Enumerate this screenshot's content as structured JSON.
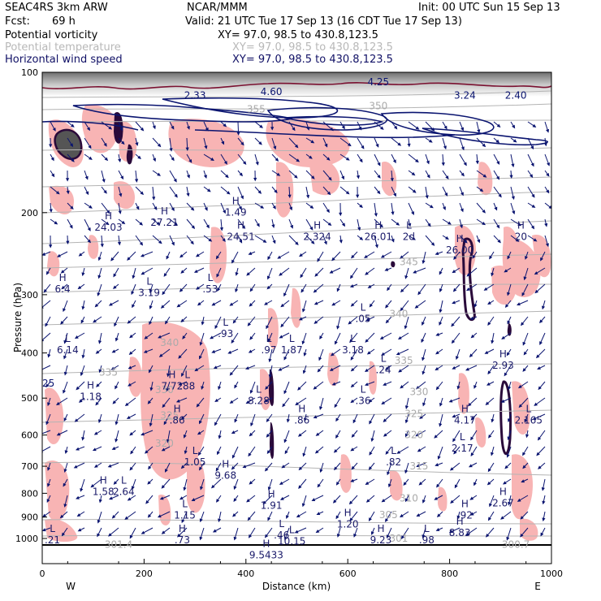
{
  "header": {
    "model": "SEAC4RS  3km ARW",
    "org": "NCAR/MMM",
    "init": "Init: 00 UTC Sun 15 Sep 13",
    "fcst_label": "Fcst:",
    "fcst_value": "69 h",
    "valid": "Valid: 21 UTC Tue 17 Sep 13 (16 CDT Tue 17 Sep 13)"
  },
  "legend": [
    {
      "name": "Potential vorticity",
      "xy": "XY=  97.0, 98.5 to 430.8,123.5",
      "color": "#000000"
    },
    {
      "name": "Potential temperature",
      "xy": "XY=  97.0, 98.5 to 430.8,123.5",
      "color": "#b8b8b8"
    },
    {
      "name": "Horizontal wind speed",
      "xy": "XY=  97.0, 98.5 to 430.8,123.5",
      "color": "#000066"
    }
  ],
  "chart_data": {
    "type": "cross-section",
    "xlabel": "Distance (km)",
    "ylabel": "Pressure (hPa)",
    "xlim": [
      0,
      1000
    ],
    "ylim": [
      1000,
      100
    ],
    "y_scale": "log",
    "x_ticks": [
      "0",
      "200",
      "400",
      "600",
      "800",
      "1000"
    ],
    "y_ticks": [
      "100",
      "200",
      "300",
      "400",
      "500",
      "600",
      "700",
      "800",
      "900",
      "1000"
    ],
    "x_end_labels": [
      "W",
      "E"
    ],
    "theta_labels": [
      {
        "text": "355",
        "x": 420,
        "p": 120
      },
      {
        "text": "350",
        "x": 660,
        "p": 118
      },
      {
        "text": "345",
        "x": 720,
        "p": 255
      },
      {
        "text": "340",
        "x": 700,
        "p": 330
      },
      {
        "text": "340",
        "x": 250,
        "p": 380
      },
      {
        "text": "335",
        "x": 130,
        "p": 440
      },
      {
        "text": "335",
        "x": 710,
        "p": 415
      },
      {
        "text": "330",
        "x": 240,
        "p": 480
      },
      {
        "text": "330",
        "x": 740,
        "p": 485
      },
      {
        "text": "325",
        "x": 250,
        "p": 545
      },
      {
        "text": "325",
        "x": 730,
        "p": 540
      },
      {
        "text": "320",
        "x": 240,
        "p": 625
      },
      {
        "text": "320",
        "x": 730,
        "p": 600
      },
      {
        "text": "315",
        "x": 740,
        "p": 700
      },
      {
        "text": "310",
        "x": 720,
        "p": 820
      },
      {
        "text": "305",
        "x": 680,
        "p": 890
      },
      {
        "text": "301.4",
        "x": 150,
        "p": 1030
      },
      {
        "text": "301",
        "x": 700,
        "p": 1000
      },
      {
        "text": "300.7",
        "x": 930,
        "p": 1030
      }
    ],
    "extrema": [
      {
        "hl": "H",
        "val": "24.03",
        "x": 130,
        "p": 210
      },
      {
        "hl": "H",
        "val": "27.21",
        "x": 240,
        "p": 205
      },
      {
        "hl": "H",
        "val": "1.49",
        "x": 380,
        "p": 195
      },
      {
        "hl": "H",
        "val": "24.51",
        "x": 390,
        "p": 220
      },
      {
        "hl": "H",
        "val": "2.324",
        "x": 540,
        "p": 220
      },
      {
        "hl": "H",
        "val": "26.01",
        "x": 660,
        "p": 220
      },
      {
        "hl": "L",
        "val": "2d",
        "x": 720,
        "p": 220
      },
      {
        "hl": "H",
        "val": "26.00",
        "x": 820,
        "p": 235
      },
      {
        "hl": "H",
        "val": "20",
        "x": 940,
        "p": 220
      },
      {
        "hl": "L",
        "val": "3.19",
        "x": 210,
        "p": 290
      },
      {
        "hl": "L",
        "val": ".53",
        "x": 330,
        "p": 285
      },
      {
        "hl": "H",
        "val": "6.4",
        "x": 40,
        "p": 285
      },
      {
        "hl": "L",
        "val": ".05",
        "x": 630,
        "p": 330
      },
      {
        "hl": "L",
        "val": ".93",
        "x": 360,
        "p": 355
      },
      {
        "hl": "L",
        "val": "6.14",
        "x": 50,
        "p": 385
      },
      {
        "hl": "L",
        "val": ".97",
        "x": 445,
        "p": 385
      },
      {
        "hl": "L",
        "val": "1.87",
        "x": 490,
        "p": 385
      },
      {
        "hl": "L",
        "val": "3.18",
        "x": 610,
        "p": 385
      },
      {
        "hl": "L",
        "val": ".24",
        "x": 670,
        "p": 425
      },
      {
        "hl": "H",
        "val": "2.93",
        "x": 905,
        "p": 415
      },
      {
        "hl": "H",
        "val": "7.72",
        "x": 255,
        "p": 460
      },
      {
        "hl": "L",
        "val": ".88",
        "x": 285,
        "p": 460
      },
      {
        "hl": "H",
        "val": "1.18",
        "x": 95,
        "p": 485
      },
      {
        "hl": "L",
        "val": "8.28",
        "x": 425,
        "p": 495
      },
      {
        "hl": "L",
        "val": ".36",
        "x": 630,
        "p": 495
      },
      {
        "hl": "H",
        "val": ".86",
        "x": 265,
        "p": 545
      },
      {
        "hl": "H",
        "val": ".86",
        "x": 510,
        "p": 545
      },
      {
        "hl": "H",
        "val": "4.17",
        "x": 830,
        "p": 545
      },
      {
        "hl": "L",
        "val": "2.165",
        "x": 955,
        "p": 545
      },
      {
        "hl": "L",
        "val": "2.17",
        "x": 825,
        "p": 625
      },
      {
        "hl": "L",
        "val": "1.05",
        "x": 300,
        "p": 670
      },
      {
        "hl": "L",
        "val": ".82",
        "x": 690,
        "p": 670
      },
      {
        "hl": "H",
        "val": "9.68",
        "x": 360,
        "p": 715
      },
      {
        "hl": "H",
        "val": "1.58",
        "x": 120,
        "p": 775
      },
      {
        "hl": "L",
        "val": "2.64",
        "x": 160,
        "p": 775
      },
      {
        "hl": "H",
        "val": "1.91",
        "x": 450,
        "p": 830
      },
      {
        "hl": "H",
        "val": "2.67",
        "x": 905,
        "p": 820
      },
      {
        "hl": "L",
        "val": "1.15",
        "x": 280,
        "p": 870
      },
      {
        "hl": "H",
        "val": ".92",
        "x": 830,
        "p": 870
      },
      {
        "hl": "H",
        "val": "1.20",
        "x": 600,
        "p": 910
      },
      {
        "hl": "H",
        "val": "8.83",
        "x": 820,
        "p": 950
      },
      {
        "hl": "L",
        "val": ".46",
        "x": 470,
        "p": 960
      },
      {
        "hl": "H",
        "val": ".73",
        "x": 275,
        "p": 985
      },
      {
        "hl": "L",
        "val": "10.15",
        "x": 490,
        "p": 990
      },
      {
        "hl": "H",
        "val": "9.23",
        "x": 665,
        "p": 985
      },
      {
        "hl": "L",
        "val": ".98",
        "x": 755,
        "p": 985
      },
      {
        "hl": "L",
        "val": ".21",
        "x": 20,
        "p": 985
      },
      {
        "hl": "H",
        "val": "9.5433",
        "x": 440,
        "p": 1060
      }
    ],
    "wind_labels": [
      {
        "text": "4.60",
        "x": 450,
        "p": 110
      },
      {
        "text": "4.25",
        "x": 660,
        "p": 105
      },
      {
        "text": "3.24",
        "x": 830,
        "p": 112
      },
      {
        "text": "2.40",
        "x": 930,
        "p": 112
      },
      {
        "text": "2.33",
        "x": 300,
        "p": 112
      }
    ],
    "left_edge_value": "25"
  }
}
